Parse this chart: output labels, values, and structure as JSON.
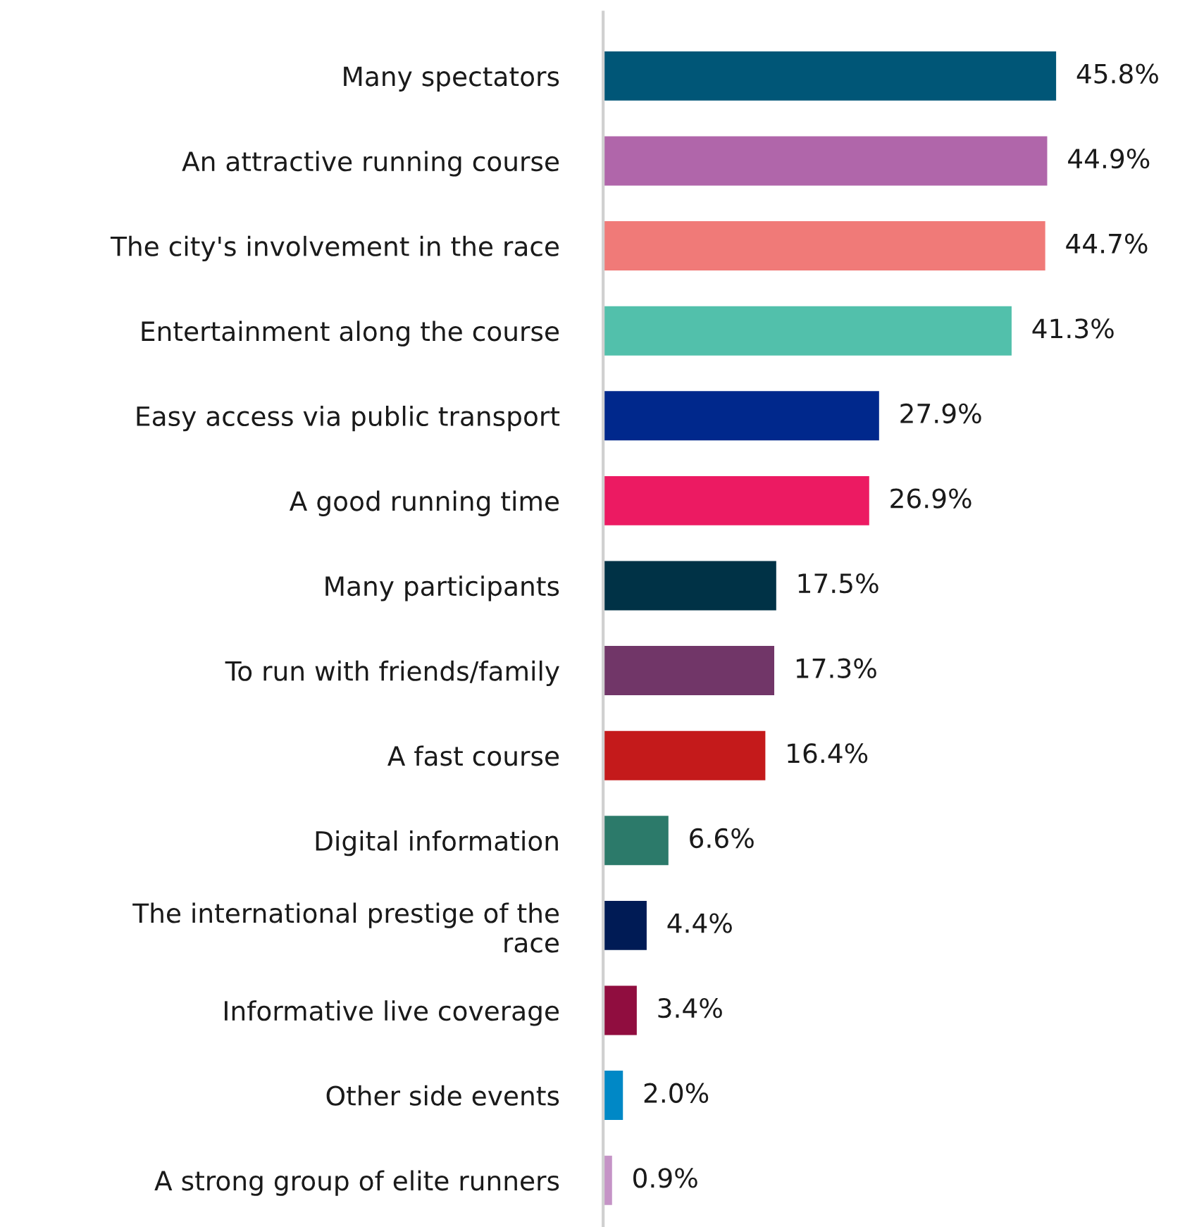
{
  "chart_data": {
    "type": "bar",
    "orientation": "horizontal",
    "categories": [
      "Many spectators",
      "An attractive running course",
      "The city's involvement in the race",
      "Entertainment along the course",
      "Easy access via public transport",
      "A good running time",
      "Many participants",
      "To run with friends/family",
      "A fast course",
      "Digital information",
      "The international prestige of the\nrace",
      "Informative live coverage",
      "Other side events",
      "A strong group of elite runners"
    ],
    "values": [
      45.8,
      44.9,
      44.7,
      41.3,
      27.9,
      26.9,
      17.5,
      17.3,
      16.4,
      6.6,
      4.4,
      3.4,
      2.0,
      0.9
    ],
    "value_labels": [
      "45.8%",
      "44.9%",
      "44.7%",
      "41.3%",
      "27.9%",
      "26.9%",
      "17.5%",
      "17.3%",
      "16.4%",
      "6.6%",
      "4.4%",
      "3.4%",
      "2.0%",
      "0.9%"
    ],
    "colors": [
      "#005677",
      "#b066aa",
      "#f07a78",
      "#52c0ab",
      "#00288c",
      "#ec1a62",
      "#003246",
      "#713668",
      "#c41a1b",
      "#2c7a6a",
      "#001b55",
      "#900d3f",
      "#0088c6",
      "#c593c6"
    ],
    "grid": false,
    "legend": false
  }
}
